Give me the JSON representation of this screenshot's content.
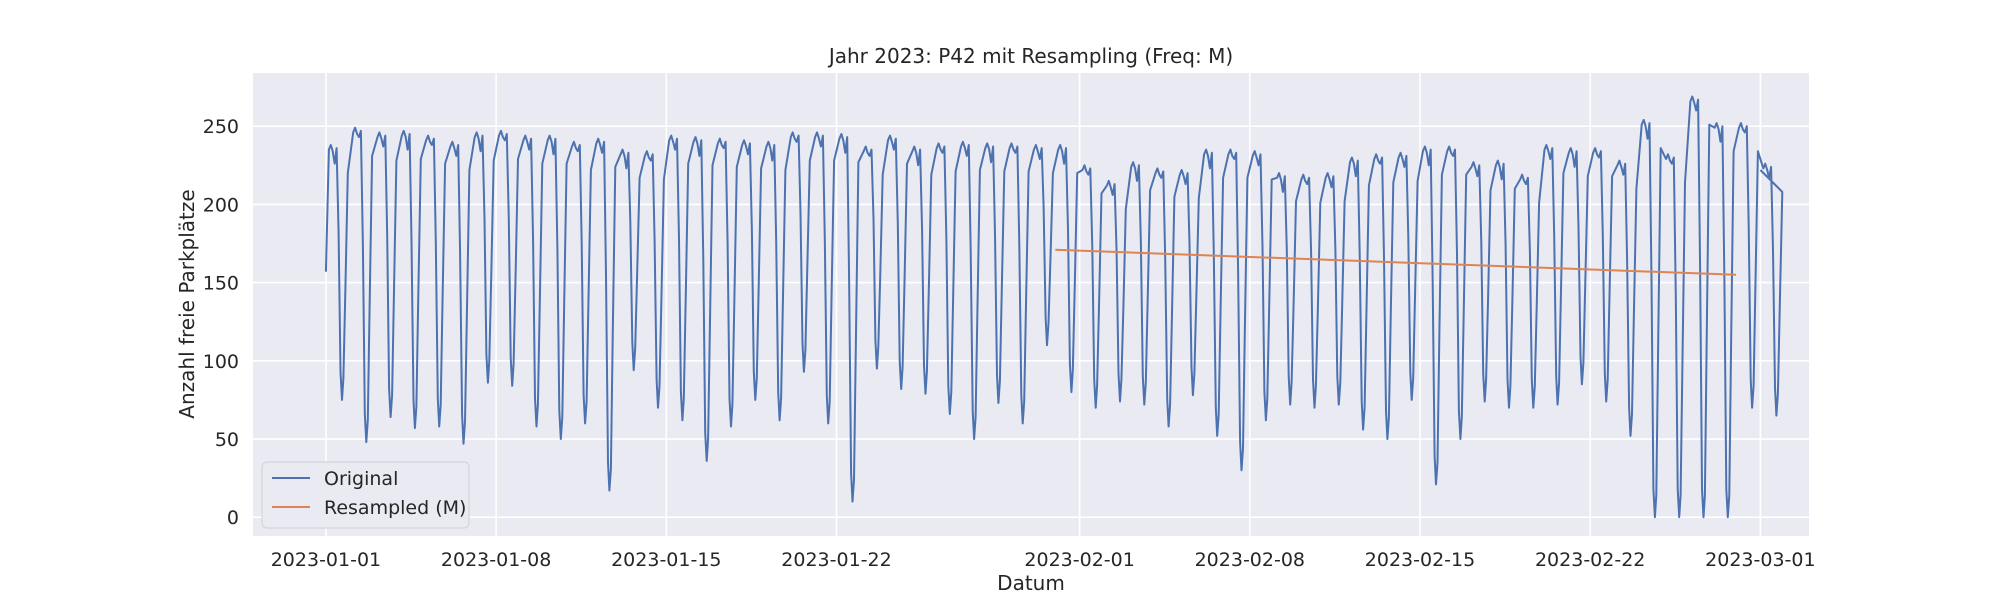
{
  "chart_data": {
    "type": "line",
    "title": "Jahr 2023: P42 mit Resampling (Freq: M)",
    "xlabel": "Datum",
    "ylabel": "Anzahl freie Parkplätze",
    "x_range": [
      "2022-12-29",
      "2023-03-03"
    ],
    "ylim": [
      -12,
      284
    ],
    "x_ticks": [
      "2023-01-01",
      "2023-01-08",
      "2023-01-15",
      "2023-01-22",
      "2023-02-01",
      "2023-02-08",
      "2023-02-15",
      "2023-02-22",
      "2023-03-01"
    ],
    "y_ticks": [
      0,
      50,
      100,
      150,
      200,
      250
    ],
    "grid": true,
    "legend_position": "lower-left",
    "series": [
      {
        "name": "Original",
        "color": "#4c72b0",
        "note_sampling": "approximate daily cycle: daytime minimum and overnight plateau",
        "daily_lows": [
          75,
          48,
          64,
          57,
          58,
          47,
          86,
          84,
          58,
          50,
          60,
          17,
          94,
          70,
          62,
          36,
          58,
          75,
          62,
          93,
          60,
          10,
          95,
          82,
          79,
          66,
          50,
          73,
          60,
          110,
          80,
          70,
          74,
          72,
          58,
          78,
          52,
          30,
          62,
          72,
          70,
          72,
          56,
          50,
          75,
          21,
          50,
          74,
          70,
          70,
          72,
          85,
          74,
          52,
          0,
          0,
          0,
          0,
          70,
          65
        ],
        "daily_highs": [
          238,
          249,
          246,
          247,
          244,
          240,
          246,
          247,
          244,
          244,
          240,
          242,
          235,
          234,
          244,
          243,
          242,
          241,
          240,
          246,
          246,
          245,
          237,
          244,
          237,
          239,
          240,
          239,
          239,
          238,
          238,
          225,
          215,
          227,
          223,
          222,
          235,
          235,
          234,
          220,
          219,
          220,
          230,
          232,
          233,
          237,
          237,
          227,
          228,
          219,
          238,
          236,
          236,
          228,
          254,
          232,
          269,
          252,
          252,
          226
        ]
      },
      {
        "name": "Resampled (M)",
        "color": "#dd8452",
        "points": [
          {
            "x": "2023-01-31",
            "y": 171
          },
          {
            "x": "2023-02-28",
            "y": 155
          }
        ]
      }
    ]
  }
}
